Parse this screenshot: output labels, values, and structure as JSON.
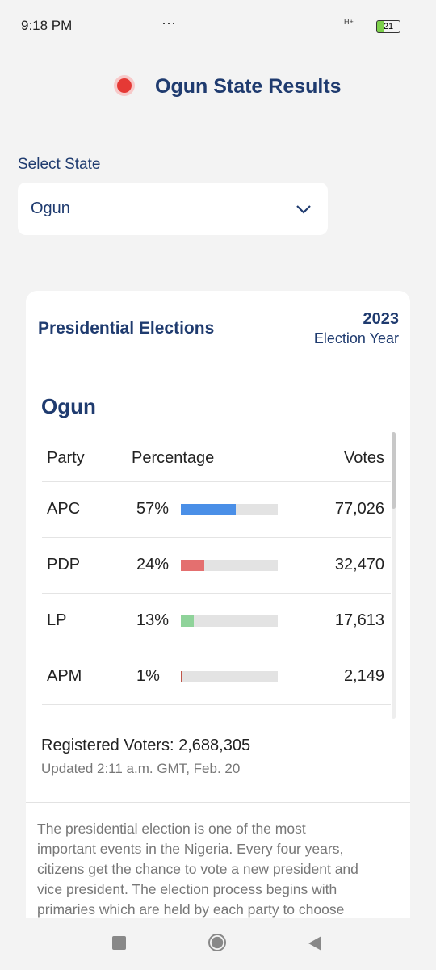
{
  "status_bar": {
    "time": "9:18 PM",
    "network": "H+",
    "battery": "21",
    "more": "···"
  },
  "header": {
    "title": "Ogun State Results"
  },
  "selector": {
    "label": "Select State",
    "value": "Ogun"
  },
  "card": {
    "title": "Presidential Elections",
    "year": "2023",
    "year_label": "Election Year",
    "state": "Ogun",
    "table": {
      "columns": [
        "Party",
        "Percentage",
        "Votes"
      ],
      "rows": [
        {
          "party": "APC",
          "percentage": {
            "value": 57,
            "label": "57%"
          },
          "votes": "77,026",
          "color": "#4a8fe7"
        },
        {
          "party": "PDP",
          "percentage": {
            "value": 24,
            "label": "24%"
          },
          "votes": "32,470",
          "color": "#e46f6f"
        },
        {
          "party": "LP",
          "percentage": {
            "value": 13,
            "label": "13%"
          },
          "votes": "17,613",
          "color": "#8fd39a"
        },
        {
          "party": "APM",
          "percentage": {
            "value": 1,
            "label": "1%"
          },
          "votes": "2,149",
          "color": "#c0564a"
        }
      ]
    },
    "registered": "Registered Voters: 2,688,305",
    "updated": "Updated 2:11 a.m. GMT, Feb. 20",
    "description": [
      "The presidential election is one of the most",
      "important events in the Nigeria. Every four years,",
      "citizens get the chance to vote a new president and",
      "vice president. The election process begins with",
      "primaries which are held by each party to choose"
    ]
  }
}
